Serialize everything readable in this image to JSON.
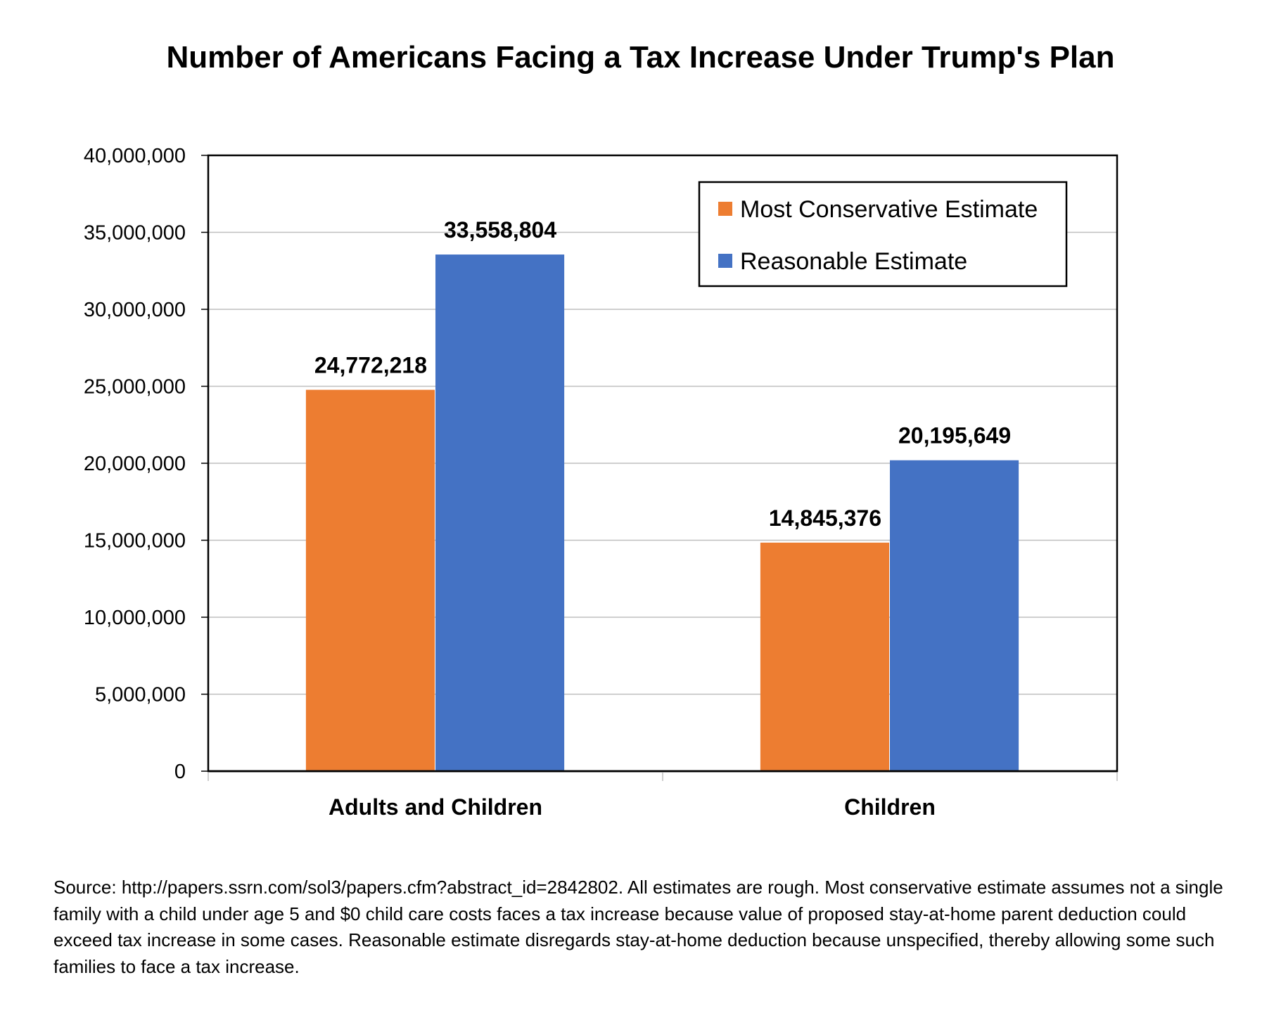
{
  "chart_data": {
    "type": "bar",
    "title": "Number of Americans Facing a Tax Increase Under Trump's Plan",
    "categories": [
      "Adults and Children",
      "Children"
    ],
    "series": [
      {
        "name": "Most Conservative Estimate",
        "color": "#ED7D31",
        "values": [
          24772218,
          14845376
        ],
        "labels": [
          "24,772,218",
          "14,845,376"
        ]
      },
      {
        "name": "Reasonable Estimate",
        "color": "#4472C4",
        "values": [
          33558804,
          20195649
        ],
        "labels": [
          "33,558,804",
          "20,195,649"
        ]
      }
    ],
    "ylim": [
      0,
      40000000
    ],
    "yticks": [
      0,
      5000000,
      10000000,
      15000000,
      20000000,
      25000000,
      30000000,
      35000000,
      40000000
    ],
    "ytick_labels": [
      "0",
      "5,000,000",
      "10,000,000",
      "15,000,000",
      "20,000,000",
      "25,000,000",
      "30,000,000",
      "35,000,000",
      "40,000,000"
    ],
    "xlabel": "",
    "ylabel": "",
    "grid": true,
    "legend_position": "top-right"
  },
  "source_note": "Source: http://papers.ssrn.com/sol3/papers.cfm?abstract_id=2842802. All estimates are rough. Most conservative estimate assumes not a single family with a child under age 5 and $0 child care costs faces a tax increase because value of proposed stay-at-home parent deduction could exceed tax increase in some cases. Reasonable estimate disregards stay-at-home deduction because unspecified, thereby allowing some such families to face a tax increase."
}
